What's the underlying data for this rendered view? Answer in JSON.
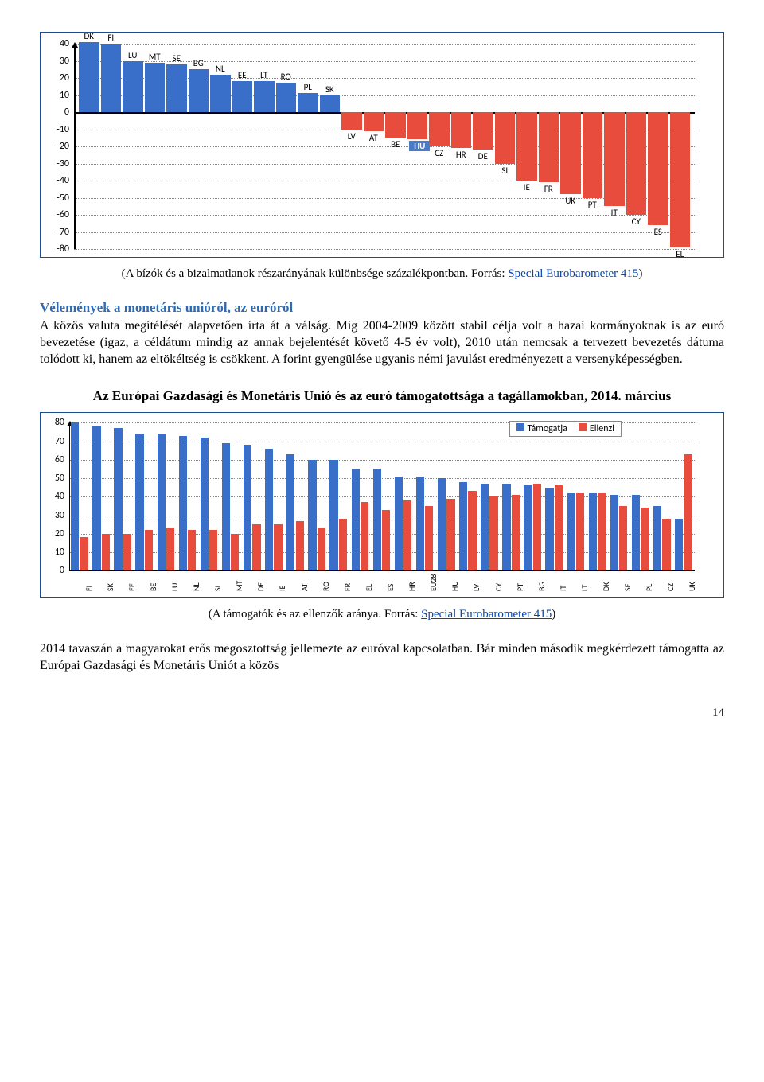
{
  "chart1": {
    "type": "bar",
    "yticks": [
      40,
      30,
      20,
      10,
      0,
      -10,
      -20,
      -30,
      -40,
      -50,
      -60,
      -70,
      -80
    ],
    "ylim": [
      -80,
      40
    ],
    "grid_color": "#aaaaaa",
    "pos_color": "#3a6fc9",
    "neg_color": "#e84c3d",
    "bars": [
      {
        "code": "DK",
        "value": 41
      },
      {
        "code": "FI",
        "value": 40
      },
      {
        "code": "LU",
        "value": 30
      },
      {
        "code": "MT",
        "value": 29
      },
      {
        "code": "SE",
        "value": 28
      },
      {
        "code": "BG",
        "value": 25
      },
      {
        "code": "NL",
        "value": 22
      },
      {
        "code": "EE",
        "value": 18
      },
      {
        "code": "LT",
        "value": 18
      },
      {
        "code": "RO",
        "value": 17
      },
      {
        "code": "PL",
        "value": 11
      },
      {
        "code": "SK",
        "value": 10
      },
      {
        "code": "LV",
        "value": -10
      },
      {
        "code": "AT",
        "value": -11
      },
      {
        "code": "BE",
        "value": -15
      },
      {
        "code": "HU",
        "value": -16
      },
      {
        "code": "CZ",
        "value": -20
      },
      {
        "code": "HR",
        "value": -21
      },
      {
        "code": "DE",
        "value": -22
      },
      {
        "code": "SI",
        "value": -30
      },
      {
        "code": "IE",
        "value": -40
      },
      {
        "code": "FR",
        "value": -41
      },
      {
        "code": "UK",
        "value": -48
      },
      {
        "code": "PT",
        "value": -50
      },
      {
        "code": "IT",
        "value": -55
      },
      {
        "code": "CY",
        "value": -60
      },
      {
        "code": "ES",
        "value": -66
      },
      {
        "code": "EL",
        "value": -79
      }
    ]
  },
  "caption1_pre": "(A bízók és a bizalmatlanok részarányának különbsége százalékpontban. Forrás: ",
  "caption1_link": "Special Eurobarometer 415",
  "caption1_post": ")",
  "section_title": "Vélemények a monetáris unióról, az euróról",
  "body1": "A közös valuta megítélését alapvetően írta át a válság. Míg 2004-2009 között stabil célja volt a hazai kormányoknak is az euró bevezetése (igaz, a céldátum mindig az annak bejelentését követő 4-5 év volt), 2010 után nemcsak a tervezett bevezetés dátuma tolódott ki, hanem az eltökéltség is csökkent. A forint gyengülése ugyanis némi javulást eredményezett a versenyképességben.",
  "chart2_title": "Az Európai Gazdasági és Monetáris Unió és az euró támogatottsága a tagállamokban, 2014. március",
  "chart2": {
    "type": "grouped-bar",
    "legend": {
      "a": "Támogatja",
      "b": "Ellenzi"
    },
    "yticks": [
      0,
      10,
      20,
      30,
      40,
      50,
      60,
      70,
      80
    ],
    "ylim": [
      0,
      80
    ],
    "color_a": "#3a6fc9",
    "color_b": "#e84c3d",
    "categories": [
      "FI",
      "SK",
      "EE",
      "BE",
      "LU",
      "NL",
      "SI",
      "MT",
      "DE",
      "IE",
      "AT",
      "RO",
      "FR",
      "EL",
      "ES",
      "HR",
      "EU28",
      "HU",
      "LV",
      "CY",
      "PT",
      "BG",
      "IT",
      "LT",
      "DK",
      "SE",
      "PL",
      "CZ",
      "UK"
    ],
    "series_a": [
      80,
      78,
      77,
      74,
      74,
      73,
      72,
      69,
      68,
      66,
      63,
      60,
      60,
      55,
      55,
      51,
      51,
      50,
      48,
      47,
      47,
      46,
      45,
      42,
      42,
      41,
      41,
      35,
      28
    ],
    "series_b": [
      18,
      20,
      20,
      22,
      23,
      22,
      22,
      20,
      25,
      25,
      27,
      23,
      28,
      37,
      33,
      38,
      35,
      39,
      43,
      40,
      41,
      47,
      46,
      42,
      42,
      35,
      34,
      28,
      63
    ]
  },
  "caption2_pre": "(A támogatók és az ellenzők aránya. Forrás: ",
  "caption2_link": "Special Eurobarometer 415",
  "caption2_post": ")",
  "body2": "2014 tavaszán a magyarokat erős megosztottság jellemezte az euróval kapcsolatban. Bár minden második megkérdezett támogatta az Európai Gazdasági és Monetáris Uniót a közös",
  "page_num": "14"
}
